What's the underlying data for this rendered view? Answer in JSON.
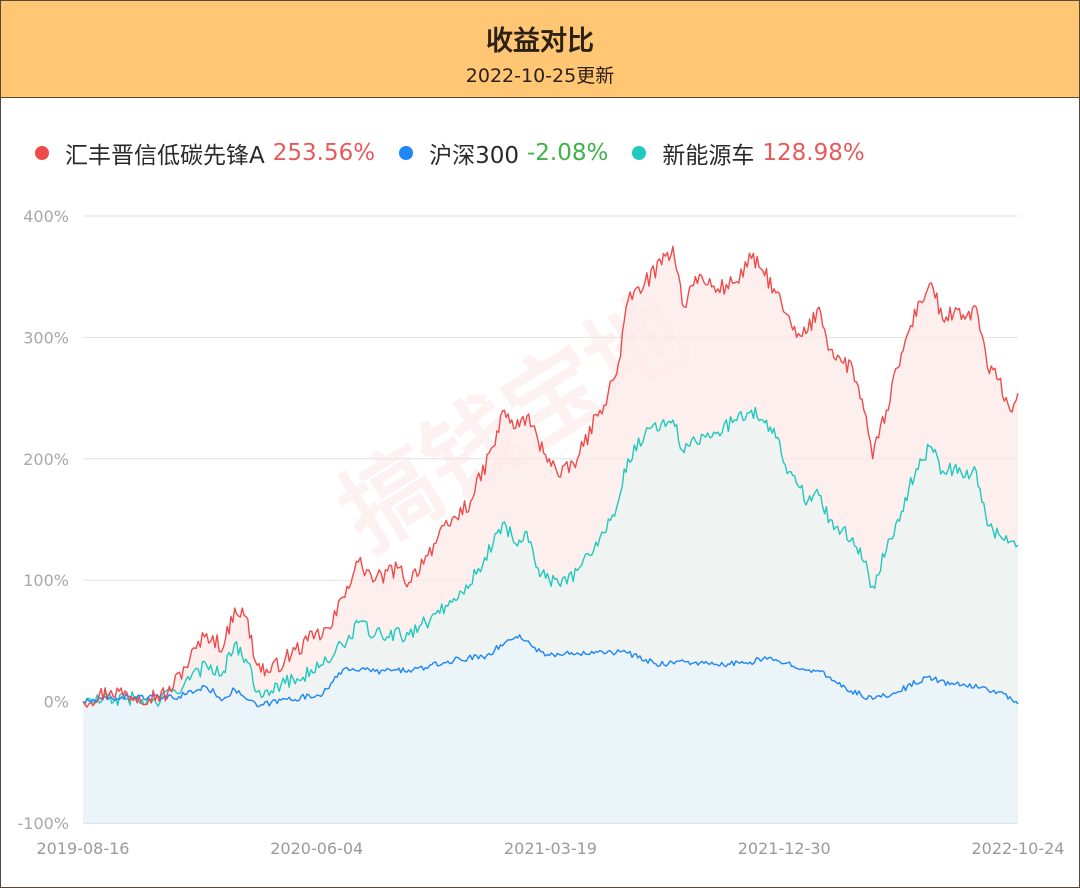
{
  "header": {
    "title": "收益对比",
    "subtitle": "2022-10-25更新"
  },
  "colors": {
    "header_bg": "#ffc774",
    "positive": "#e85a5a",
    "negative": "#3fb24a"
  },
  "legend": [
    {
      "name": "汇丰晋信低碳先锋A",
      "value": "253.56%",
      "color": "#ee4b4b",
      "value_color": "#e85a5a"
    },
    {
      "name": "沪深300",
      "value": "-2.08%",
      "color": "#1e86f5",
      "value_color": "#3fb24a"
    },
    {
      "name": "新能源车",
      "value": "128.98%",
      "color": "#1fc9bd",
      "value_color": "#e85a5a"
    }
  ],
  "watermark": "搞钱宝地",
  "chart_data": {
    "type": "line",
    "x_tick_labels": [
      "2019-08-16",
      "2020-06-04",
      "2021-03-19",
      "2021-12-30",
      "2022-10-24"
    ],
    "y_tick_labels": [
      "400%",
      "300%",
      "200%",
      "100%",
      "0%",
      "-100%"
    ],
    "y_ticks": [
      400,
      300,
      200,
      100,
      0,
      -100
    ],
    "ylim": [
      -100,
      400
    ],
    "xlim": [
      "2019-08-16",
      "2022-10-24"
    ],
    "grid": true,
    "legend_position": "top-left",
    "series": [
      {
        "name": "汇丰晋信低碳先锋A",
        "color": "#ee4b4b",
        "fill": "#fde8e8",
        "points": [
          [
            "2019-08-16",
            0
          ],
          [
            "2019-09-20",
            9
          ],
          [
            "2019-10-25",
            4
          ],
          [
            "2019-11-29",
            6
          ],
          [
            "2019-12-27",
            35
          ],
          [
            "2020-01-17",
            56
          ],
          [
            "2020-02-07",
            45
          ],
          [
            "2020-02-21",
            77
          ],
          [
            "2020-03-06",
            70
          ],
          [
            "2020-03-20",
            30
          ],
          [
            "2020-04-03",
            24
          ],
          [
            "2020-04-24",
            35
          ],
          [
            "2020-05-22",
            50
          ],
          [
            "2020-06-19",
            60
          ],
          [
            "2020-07-10",
            95
          ],
          [
            "2020-07-24",
            115
          ],
          [
            "2020-08-14",
            100
          ],
          [
            "2020-09-11",
            110
          ],
          [
            "2020-09-25",
            98
          ],
          [
            "2020-10-16",
            120
          ],
          [
            "2020-11-13",
            145
          ],
          [
            "2020-12-11",
            165
          ],
          [
            "2021-01-08",
            210
          ],
          [
            "2021-01-22",
            240
          ],
          [
            "2021-02-05",
            225
          ],
          [
            "2021-02-19",
            235
          ],
          [
            "2021-03-05",
            215
          ],
          [
            "2021-03-19",
            200
          ],
          [
            "2021-04-02",
            185
          ],
          [
            "2021-04-23",
            200
          ],
          [
            "2021-05-21",
            240
          ],
          [
            "2021-06-11",
            270
          ],
          [
            "2021-06-25",
            330
          ],
          [
            "2021-07-16",
            345
          ],
          [
            "2021-08-06",
            360
          ],
          [
            "2021-08-20",
            375
          ],
          [
            "2021-09-03",
            325
          ],
          [
            "2021-09-17",
            350
          ],
          [
            "2021-10-15",
            340
          ],
          [
            "2021-11-05",
            345
          ],
          [
            "2021-11-26",
            365
          ],
          [
            "2021-12-10",
            355
          ],
          [
            "2021-12-24",
            340
          ],
          [
            "2022-01-07",
            320
          ],
          [
            "2022-01-21",
            300
          ],
          [
            "2022-02-04",
            305
          ],
          [
            "2022-02-18",
            325
          ],
          [
            "2022-03-04",
            290
          ],
          [
            "2022-03-18",
            280
          ],
          [
            "2022-04-01",
            275
          ],
          [
            "2022-04-15",
            240
          ],
          [
            "2022-04-26",
            200
          ],
          [
            "2022-05-13",
            240
          ],
          [
            "2022-05-27",
            275
          ],
          [
            "2022-06-10",
            305
          ],
          [
            "2022-06-24",
            330
          ],
          [
            "2022-07-08",
            345
          ],
          [
            "2022-07-22",
            315
          ],
          [
            "2022-08-05",
            320
          ],
          [
            "2022-08-19",
            315
          ],
          [
            "2022-09-02",
            325
          ],
          [
            "2022-09-16",
            275
          ],
          [
            "2022-09-30",
            265
          ],
          [
            "2022-10-14",
            240
          ],
          [
            "2022-10-24",
            254
          ]
        ]
      },
      {
        "name": "沪深300",
        "color": "#1e86f5",
        "fill": "#eaf3fc",
        "points": [
          [
            "2019-08-16",
            0
          ],
          [
            "2019-10-11",
            4
          ],
          [
            "2019-12-06",
            3
          ],
          [
            "2020-01-17",
            12
          ],
          [
            "2020-02-07",
            2
          ],
          [
            "2020-02-21",
            10
          ],
          [
            "2020-03-20",
            -4
          ],
          [
            "2020-04-24",
            2
          ],
          [
            "2020-06-05",
            5
          ],
          [
            "2020-07-10",
            28
          ],
          [
            "2020-08-14",
            25
          ],
          [
            "2020-09-25",
            26
          ],
          [
            "2020-10-16",
            28
          ],
          [
            "2020-11-20",
            34
          ],
          [
            "2020-12-31",
            38
          ],
          [
            "2021-01-22",
            48
          ],
          [
            "2021-02-10",
            55
          ],
          [
            "2021-02-26",
            45
          ],
          [
            "2021-03-19",
            38
          ],
          [
            "2021-04-23",
            40
          ],
          [
            "2021-05-21",
            42
          ],
          [
            "2021-06-25",
            40
          ],
          [
            "2021-07-30",
            31
          ],
          [
            "2021-09-03",
            33
          ],
          [
            "2021-10-15",
            30
          ],
          [
            "2021-11-19",
            32
          ],
          [
            "2021-12-10",
            35
          ],
          [
            "2021-12-31",
            33
          ],
          [
            "2022-02-11",
            26
          ],
          [
            "2022-03-04",
            20
          ],
          [
            "2022-03-18",
            12
          ],
          [
            "2022-04-26",
            2
          ],
          [
            "2022-05-27",
            8
          ],
          [
            "2022-07-01",
            20
          ],
          [
            "2022-08-05",
            14
          ],
          [
            "2022-09-09",
            12
          ],
          [
            "2022-10-14",
            4
          ],
          [
            "2022-10-24",
            -2.08
          ]
        ]
      },
      {
        "name": "新能源车",
        "color": "#1fc9bd",
        "fill": "#e8f6f4",
        "points": [
          [
            "2019-08-16",
            0
          ],
          [
            "2019-10-11",
            3
          ],
          [
            "2019-11-15",
            -1
          ],
          [
            "2019-12-27",
            18
          ],
          [
            "2020-01-17",
            30
          ],
          [
            "2020-02-07",
            25
          ],
          [
            "2020-02-21",
            48
          ],
          [
            "2020-03-06",
            35
          ],
          [
            "2020-03-20",
            8
          ],
          [
            "2020-04-24",
            15
          ],
          [
            "2020-06-05",
            28
          ],
          [
            "2020-07-10",
            50
          ],
          [
            "2020-07-24",
            65
          ],
          [
            "2020-08-14",
            55
          ],
          [
            "2020-09-25",
            55
          ],
          [
            "2020-10-16",
            65
          ],
          [
            "2020-11-20",
            85
          ],
          [
            "2020-12-18",
            105
          ],
          [
            "2021-01-08",
            130
          ],
          [
            "2021-01-22",
            148
          ],
          [
            "2021-02-05",
            130
          ],
          [
            "2021-02-19",
            140
          ],
          [
            "2021-03-05",
            110
          ],
          [
            "2021-03-19",
            100
          ],
          [
            "2021-04-02",
            95
          ],
          [
            "2021-04-23",
            108
          ],
          [
            "2021-05-21",
            135
          ],
          [
            "2021-06-11",
            160
          ],
          [
            "2021-06-25",
            200
          ],
          [
            "2021-07-16",
            220
          ],
          [
            "2021-08-06",
            230
          ],
          [
            "2021-08-20",
            232
          ],
          [
            "2021-09-03",
            205
          ],
          [
            "2021-09-17",
            215
          ],
          [
            "2021-10-15",
            222
          ],
          [
            "2021-11-05",
            232
          ],
          [
            "2021-11-26",
            240
          ],
          [
            "2021-12-10",
            232
          ],
          [
            "2021-12-24",
            225
          ],
          [
            "2022-01-07",
            195
          ],
          [
            "2022-01-21",
            180
          ],
          [
            "2022-02-04",
            165
          ],
          [
            "2022-02-18",
            170
          ],
          [
            "2022-03-04",
            150
          ],
          [
            "2022-03-18",
            140
          ],
          [
            "2022-04-01",
            135
          ],
          [
            "2022-04-15",
            115
          ],
          [
            "2022-04-26",
            95
          ],
          [
            "2022-05-13",
            125
          ],
          [
            "2022-05-27",
            150
          ],
          [
            "2022-06-10",
            175
          ],
          [
            "2022-06-24",
            200
          ],
          [
            "2022-07-08",
            210
          ],
          [
            "2022-07-22",
            190
          ],
          [
            "2022-08-05",
            192
          ],
          [
            "2022-08-19",
            185
          ],
          [
            "2022-09-02",
            190
          ],
          [
            "2022-09-16",
            145
          ],
          [
            "2022-09-30",
            138
          ],
          [
            "2022-10-14",
            132
          ],
          [
            "2022-10-24",
            129
          ]
        ]
      }
    ]
  }
}
